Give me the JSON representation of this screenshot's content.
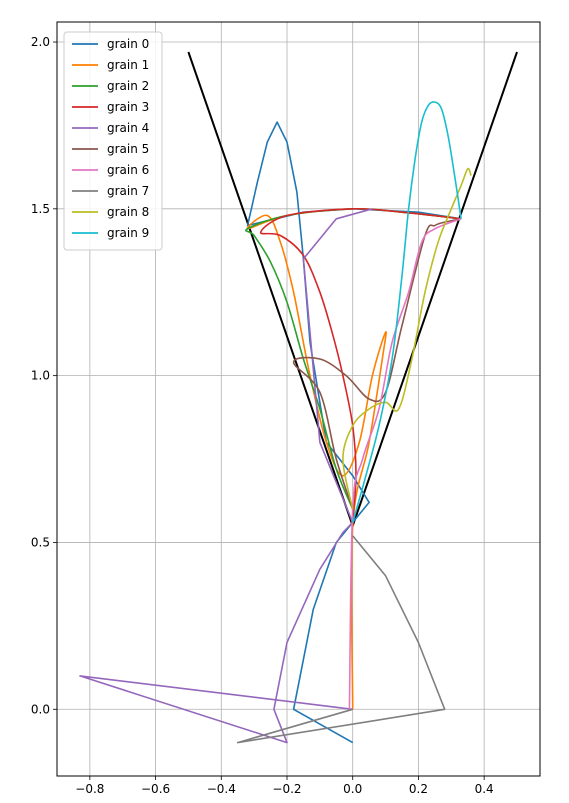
{
  "chart_data": {
    "type": "line",
    "title": "",
    "xlabel": "",
    "ylabel": "",
    "xlim": [
      -0.9,
      0.57
    ],
    "ylim": [
      -0.2,
      2.06
    ],
    "grid": true,
    "legend_position": "top-left",
    "xticks": [
      -0.8,
      -0.6,
      -0.4,
      -0.2,
      0.0,
      0.2,
      0.4
    ],
    "xtick_labels": [
      "−0.8",
      "−0.6",
      "−0.4",
      "−0.2",
      "0.0",
      "0.2",
      "0.4"
    ],
    "yticks": [
      0.0,
      0.5,
      1.0,
      1.5,
      2.0
    ],
    "ytick_labels": [
      "0.0",
      "0.5",
      "1.0",
      "1.5",
      "2.0"
    ],
    "funnel": {
      "color": "#000000",
      "x": [
        -0.5,
        0.0,
        0.5
      ],
      "y": [
        1.97,
        0.55,
        1.97
      ]
    },
    "series": [
      {
        "name": "grain 0",
        "color": "#1f77b4",
        "x": [
          0.0,
          -0.18,
          -0.18,
          -0.12,
          -0.05,
          0.0,
          0.05,
          0.0,
          -0.08,
          -0.13,
          -0.15,
          -0.17,
          -0.2,
          -0.23,
          -0.26,
          -0.29,
          -0.32,
          -0.15,
          0.0,
          0.2,
          0.33
        ],
        "y": [
          -0.1,
          0.0,
          0.0,
          0.3,
          0.5,
          0.56,
          0.62,
          0.7,
          0.8,
          1.1,
          1.35,
          1.55,
          1.7,
          1.76,
          1.7,
          1.58,
          1.45,
          1.49,
          1.5,
          1.49,
          1.47
        ]
      },
      {
        "name": "grain 1",
        "color": "#ff7f00",
        "x": [
          0.0,
          0.0,
          0.05,
          0.09,
          0.1,
          0.06,
          0.02,
          -0.03,
          -0.08,
          -0.13,
          -0.18,
          -0.22,
          -0.26,
          -0.32,
          -0.2,
          0.0,
          0.15,
          0.33
        ],
        "y": [
          0.0,
          0.55,
          0.8,
          1.05,
          1.13,
          1.0,
          0.8,
          0.7,
          0.8,
          1.0,
          1.25,
          1.4,
          1.48,
          1.44,
          1.48,
          1.5,
          1.49,
          1.47
        ],
        "smooth": true
      },
      {
        "name": "grain 2",
        "color": "#2ca02c",
        "x": [
          0.0,
          -0.05,
          -0.1,
          -0.15,
          -0.2,
          -0.25,
          -0.3,
          -0.32,
          -0.2,
          0.0,
          0.15,
          0.33
        ],
        "y": [
          0.6,
          0.72,
          0.9,
          1.05,
          1.22,
          1.34,
          1.42,
          1.44,
          1.48,
          1.5,
          1.49,
          1.47
        ],
        "smooth": true
      },
      {
        "name": "grain 3",
        "color": "#d62728",
        "x": [
          0.0,
          0.01,
          0.0,
          -0.03,
          -0.06,
          -0.1,
          -0.15,
          -0.22,
          -0.28,
          -0.2,
          0.0,
          0.15,
          0.33
        ],
        "y": [
          0.57,
          0.7,
          0.85,
          1.0,
          1.12,
          1.25,
          1.36,
          1.42,
          1.43,
          1.48,
          1.5,
          1.49,
          1.47
        ],
        "smooth": true
      },
      {
        "name": "grain 4",
        "color": "#9467bd",
        "x": [
          0.0,
          -0.83,
          -0.2,
          -0.24,
          -0.2,
          -0.1,
          -0.03,
          0.0,
          -0.1,
          -0.15,
          -0.05,
          0.06
        ],
        "y": [
          0.0,
          0.1,
          -0.1,
          0.0,
          0.2,
          0.42,
          0.53,
          0.56,
          0.8,
          1.35,
          1.47,
          1.5
        ]
      },
      {
        "name": "grain 5",
        "color": "#8c564b",
        "x": [
          0.0,
          -0.05,
          -0.1,
          -0.18,
          -0.1,
          -0.02,
          0.05,
          0.1,
          0.15,
          0.22,
          0.25,
          0.28,
          0.33
        ],
        "y": [
          0.6,
          0.75,
          0.95,
          1.04,
          1.05,
          1.0,
          0.93,
          0.95,
          1.15,
          1.42,
          1.45,
          1.46,
          1.47
        ],
        "smooth": true
      },
      {
        "name": "grain 6",
        "color": "#e377c2",
        "x": [
          -0.01,
          0.0,
          0.03,
          0.08,
          0.12,
          0.17,
          0.21,
          0.25,
          0.33
        ],
        "y": [
          0.0,
          0.6,
          0.75,
          0.9,
          1.1,
          1.25,
          1.4,
          1.44,
          1.47
        ],
        "smooth": true
      },
      {
        "name": "grain 7",
        "color": "#7f7f7f",
        "x": [
          0.0,
          0.1,
          0.2,
          0.28,
          -0.35,
          0.0
        ],
        "y": [
          0.52,
          0.4,
          0.2,
          0.0,
          -0.1,
          0.0
        ]
      },
      {
        "name": "grain 8",
        "color": "#bcbd22",
        "x": [
          0.0,
          -0.03,
          0.0,
          0.05,
          0.1,
          0.14,
          0.18,
          0.22,
          0.26,
          0.3,
          0.33,
          0.35,
          0.36
        ],
        "y": [
          0.6,
          0.75,
          0.85,
          0.9,
          0.92,
          0.9,
          1.05,
          1.25,
          1.4,
          1.5,
          1.57,
          1.62,
          1.6
        ],
        "smooth": true
      },
      {
        "name": "grain 9",
        "color": "#17becf",
        "x": [
          0.0,
          0.04,
          0.08,
          0.12,
          0.15,
          0.17,
          0.19,
          0.21,
          0.23,
          0.25,
          0.27,
          0.29,
          0.31,
          0.33
        ],
        "y": [
          0.56,
          0.7,
          0.85,
          1.05,
          1.3,
          1.5,
          1.65,
          1.76,
          1.81,
          1.82,
          1.8,
          1.72,
          1.6,
          1.47
        ],
        "smooth": true
      }
    ]
  }
}
